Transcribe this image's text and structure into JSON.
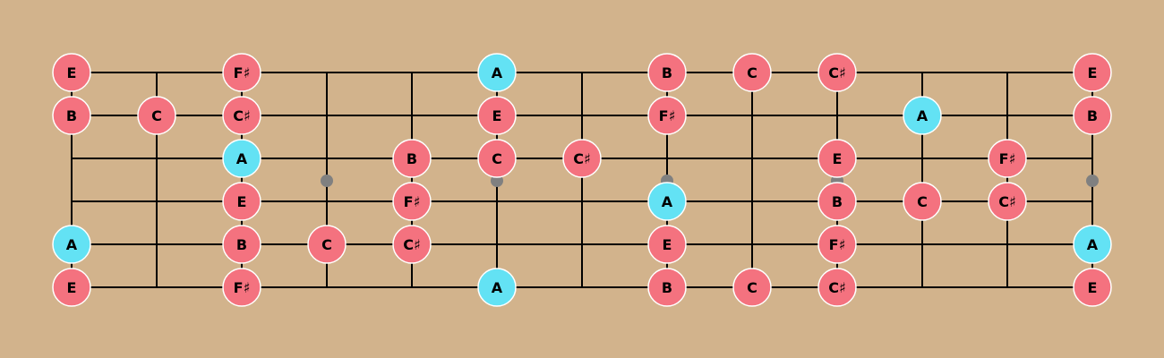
{
  "colors": {
    "background": "#d2b38c",
    "line": "#000000",
    "inlay": "#808080",
    "note": "#f4727f",
    "root": "#63e2f4",
    "note_stroke": "#ffffff"
  },
  "board": {
    "num_frets": 12,
    "num_strings": 6,
    "inlay_frets": [
      3,
      5,
      7,
      9,
      12
    ]
  },
  "notes": [
    {
      "string": 0,
      "fret": 0,
      "label": "E",
      "root": false
    },
    {
      "string": 0,
      "fret": 2,
      "label": "F♯",
      "root": false
    },
    {
      "string": 0,
      "fret": 5,
      "label": "A",
      "root": true
    },
    {
      "string": 0,
      "fret": 7,
      "label": "B",
      "root": false
    },
    {
      "string": 0,
      "fret": 8,
      "label": "C",
      "root": false
    },
    {
      "string": 0,
      "fret": 9,
      "label": "C♯",
      "root": false
    },
    {
      "string": 0,
      "fret": 12,
      "label": "E",
      "root": false
    },
    {
      "string": 1,
      "fret": 0,
      "label": "B",
      "root": false
    },
    {
      "string": 1,
      "fret": 1,
      "label": "C",
      "root": false
    },
    {
      "string": 1,
      "fret": 2,
      "label": "C♯",
      "root": false
    },
    {
      "string": 1,
      "fret": 5,
      "label": "E",
      "root": false
    },
    {
      "string": 1,
      "fret": 7,
      "label": "F♯",
      "root": false
    },
    {
      "string": 1,
      "fret": 10,
      "label": "A",
      "root": true
    },
    {
      "string": 1,
      "fret": 12,
      "label": "B",
      "root": false
    },
    {
      "string": 2,
      "fret": 2,
      "label": "A",
      "root": true
    },
    {
      "string": 2,
      "fret": 4,
      "label": "B",
      "root": false
    },
    {
      "string": 2,
      "fret": 5,
      "label": "C",
      "root": false
    },
    {
      "string": 2,
      "fret": 6,
      "label": "C♯",
      "root": false
    },
    {
      "string": 2,
      "fret": 9,
      "label": "E",
      "root": false
    },
    {
      "string": 2,
      "fret": 11,
      "label": "F♯",
      "root": false
    },
    {
      "string": 3,
      "fret": 2,
      "label": "E",
      "root": false
    },
    {
      "string": 3,
      "fret": 4,
      "label": "F♯",
      "root": false
    },
    {
      "string": 3,
      "fret": 7,
      "label": "A",
      "root": true
    },
    {
      "string": 3,
      "fret": 9,
      "label": "B",
      "root": false
    },
    {
      "string": 3,
      "fret": 10,
      "label": "C",
      "root": false
    },
    {
      "string": 3,
      "fret": 11,
      "label": "C♯",
      "root": false
    },
    {
      "string": 4,
      "fret": 0,
      "label": "A",
      "root": true
    },
    {
      "string": 4,
      "fret": 2,
      "label": "B",
      "root": false
    },
    {
      "string": 4,
      "fret": 3,
      "label": "C",
      "root": false
    },
    {
      "string": 4,
      "fret": 4,
      "label": "C♯",
      "root": false
    },
    {
      "string": 4,
      "fret": 7,
      "label": "E",
      "root": false
    },
    {
      "string": 4,
      "fret": 9,
      "label": "F♯",
      "root": false
    },
    {
      "string": 4,
      "fret": 12,
      "label": "A",
      "root": true
    },
    {
      "string": 5,
      "fret": 0,
      "label": "E",
      "root": false
    },
    {
      "string": 5,
      "fret": 2,
      "label": "F♯",
      "root": false
    },
    {
      "string": 5,
      "fret": 5,
      "label": "A",
      "root": true
    },
    {
      "string": 5,
      "fret": 7,
      "label": "B",
      "root": false
    },
    {
      "string": 5,
      "fret": 8,
      "label": "C",
      "root": false
    },
    {
      "string": 5,
      "fret": 9,
      "label": "C♯",
      "root": false
    },
    {
      "string": 5,
      "fret": 12,
      "label": "E",
      "root": false
    }
  ]
}
